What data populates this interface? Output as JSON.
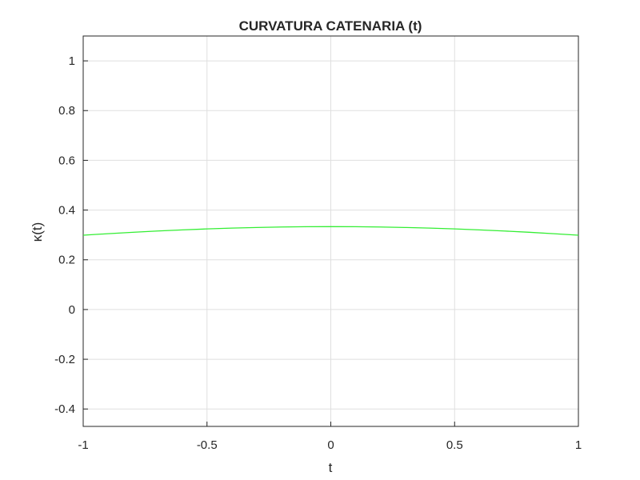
{
  "chart_data": {
    "type": "line",
    "title": "CURVATURA CATENARIA (t)",
    "xlabel": "t",
    "ylabel": "κ(t)",
    "x": [
      -1,
      -0.9,
      -0.8,
      -0.7,
      -0.6,
      -0.5,
      -0.4,
      -0.3,
      -0.2,
      -0.1,
      0,
      0.1,
      0.2,
      0.3,
      0.4,
      0.5,
      0.6,
      0.7,
      0.8,
      0.9,
      1
    ],
    "series": [
      {
        "color": "#33ee33",
        "values": [
          0.2989,
          0.305,
          0.3107,
          0.3158,
          0.3203,
          0.3242,
          0.3275,
          0.33,
          0.3319,
          0.333,
          0.3333,
          0.333,
          0.3319,
          0.33,
          0.3275,
          0.3242,
          0.3203,
          0.3158,
          0.3107,
          0.305,
          0.2989
        ]
      }
    ],
    "xlim": [
      -1,
      1
    ],
    "xticks": [
      -1,
      -0.5,
      0,
      0.5,
      1
    ],
    "ylim": [
      -0.47,
      1.1
    ],
    "yticks": [
      -0.4,
      -0.2,
      0,
      0.2,
      0.4,
      0.6,
      0.8,
      1
    ],
    "grid": true
  }
}
